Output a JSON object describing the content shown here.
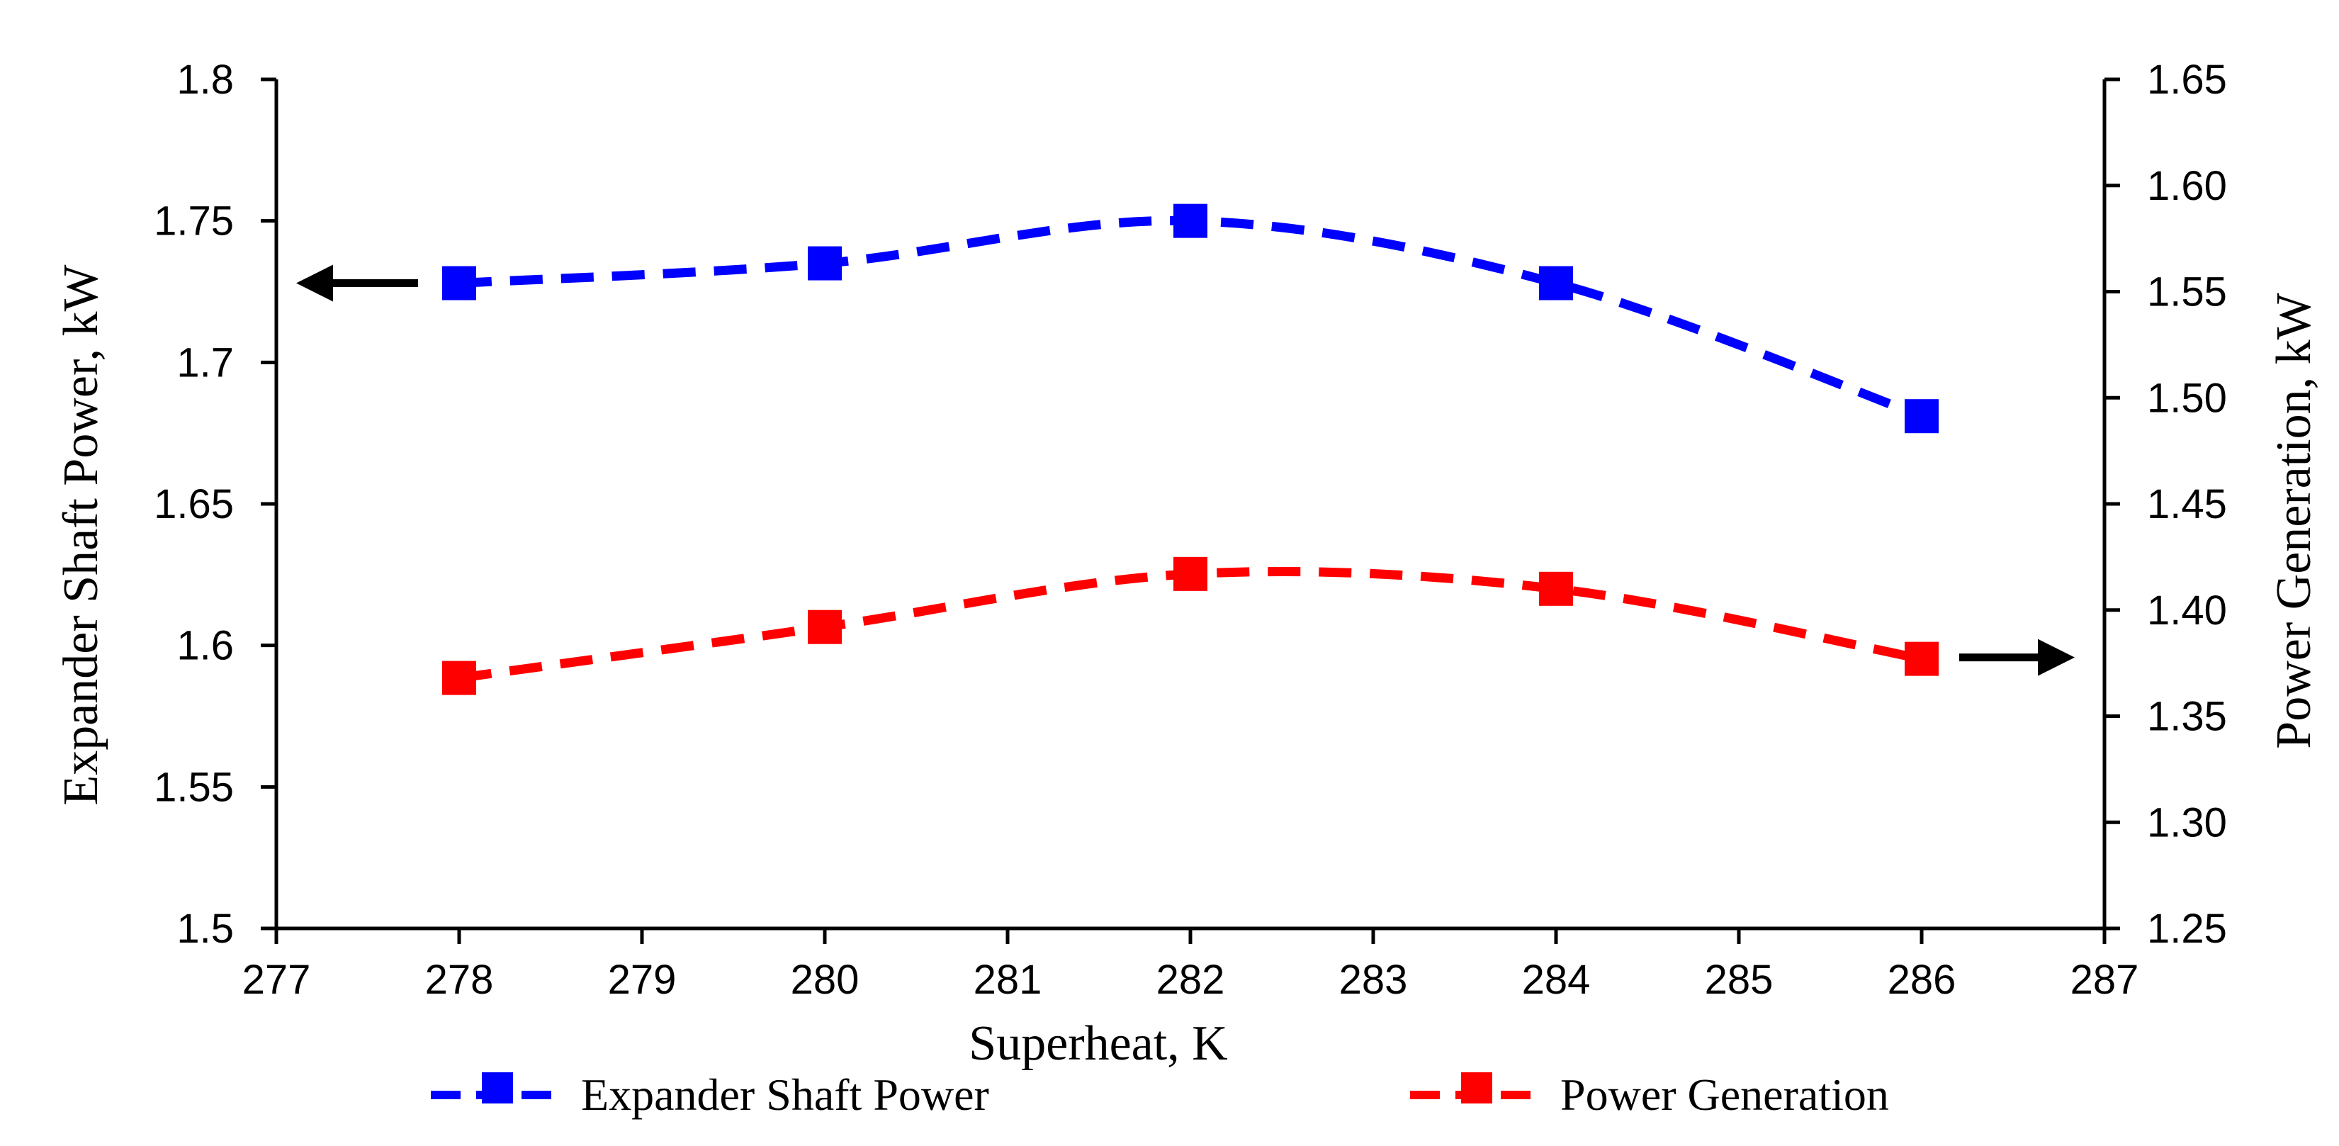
{
  "chart_data": {
    "type": "line",
    "title": "",
    "xlabel": "Superheat, K",
    "ylabel_left": "Expander Shaft Power, kW",
    "ylabel_right": "Power Generation, kW",
    "xlim": [
      277,
      287
    ],
    "ylim_left": [
      1.5,
      1.8
    ],
    "ylim_right": [
      1.25,
      1.65
    ],
    "x_ticks": [
      "277",
      "278",
      "279",
      "280",
      "281",
      "282",
      "283",
      "284",
      "285",
      "286",
      "287"
    ],
    "y_left_ticks": [
      "1.5",
      "1.55",
      "1.6",
      "1.65",
      "1.7",
      "1.75",
      "1.8"
    ],
    "y_right_ticks": [
      "1.25",
      "1.30",
      "1.35",
      "1.40",
      "1.45",
      "1.50",
      "1.55",
      "1.60",
      "1.65"
    ],
    "grid": false,
    "legend_position": "bottom",
    "series": [
      {
        "name": "Expander Shaft Power",
        "axis": "left",
        "color": "#0000ff",
        "x": [
          278,
          280,
          282,
          284,
          286
        ],
        "values": [
          1.728,
          1.735,
          1.75,
          1.728,
          1.681
        ]
      },
      {
        "name": "Power Generation",
        "axis": "right",
        "color": "#ff0000",
        "x": [
          278,
          280,
          282,
          284,
          286
        ],
        "values": [
          1.368,
          1.392,
          1.417,
          1.41,
          1.377
        ]
      }
    ],
    "annotations": [
      {
        "type": "arrow",
        "direction": "left",
        "points_to": "left-axis",
        "series": "Expander Shaft Power"
      },
      {
        "type": "arrow",
        "direction": "right",
        "points_to": "right-axis",
        "series": "Power Generation"
      }
    ]
  }
}
